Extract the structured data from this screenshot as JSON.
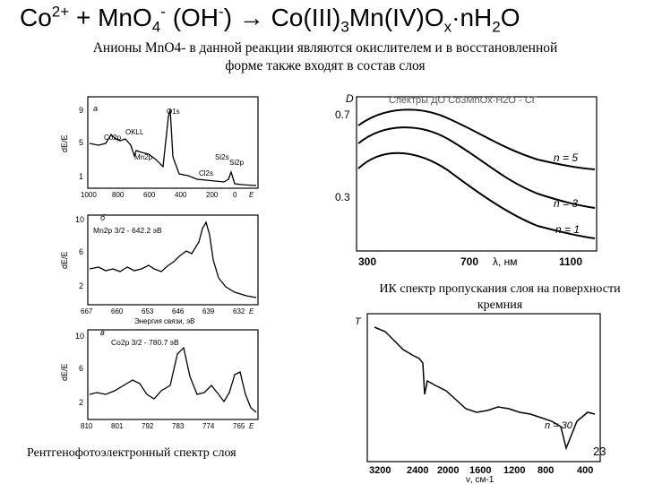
{
  "slide": {
    "title": "Co2+ + MnO4- (OH-) → Co(III)3Mn(IV)Ox·nH2O",
    "subtitle_line1": "Анионы MnO4- в данной реакции являются окислителем и в восстановленной",
    "subtitle_line2": "форме также входят в состав слоя",
    "xps_caption": "Рентгенофотоэлектронный спектр слоя",
    "ir_caption": "ИК спектр пропускания слоя на поверхности кремния",
    "page_number": "23"
  },
  "xps_a": {
    "panel_letter": "а",
    "ylabel": "dE/E",
    "y_ticks": [
      "9",
      "5",
      "1"
    ],
    "x_ticks": [
      "1000",
      "800",
      "600",
      "400",
      "200",
      "0"
    ],
    "x_unit": "E",
    "peaks": [
      "O1s",
      "Co2p",
      "OKLL",
      "Mn2p",
      "Si2s",
      "Si2p",
      "Cl2s"
    ]
  },
  "xps_b": {
    "panel_letter": "б",
    "label": "Mn2p 3/2 - 642.2 эВ",
    "ylabel": "dE/E",
    "y_ticks": [
      "10",
      "6",
      "2"
    ],
    "x_ticks": [
      "667",
      "660",
      "653",
      "646",
      "639",
      "632"
    ],
    "x_unit": "E",
    "xlabel": "Энергия связи, эВ"
  },
  "xps_c": {
    "panel_letter": "в",
    "label": "Co2p 3/2 - 780.7 эВ",
    "ylabel": "dE/E",
    "y_ticks": [
      "10",
      "6",
      "2"
    ],
    "x_ticks": [
      "810",
      "801",
      "792",
      "783",
      "774",
      "765"
    ],
    "x_unit": "E"
  },
  "uv": {
    "header": "Спектры ДО Co3MnOx·H2O - СГ",
    "ylabel": "D",
    "y_ticks": [
      "0.7",
      "0.3"
    ],
    "x_ticks": [
      "300",
      "700",
      "1100"
    ],
    "xlabel": "λ, нм",
    "curve_labels": [
      "n = 5",
      "n = 3",
      "n = 1"
    ]
  },
  "ir": {
    "ylabel": "T",
    "x_ticks": [
      "3200",
      "2400",
      "2000",
      "1600",
      "1200",
      "800",
      "400"
    ],
    "xlabel": "ν, см-1",
    "curve_label": "n = 30"
  }
}
